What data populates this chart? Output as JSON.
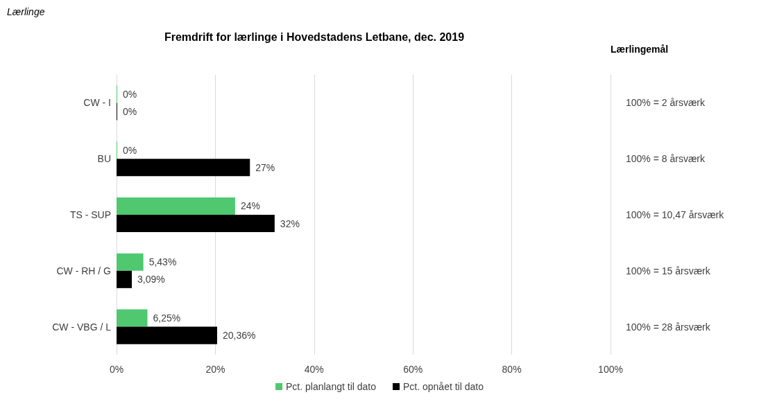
{
  "chart_data": {
    "type": "bar",
    "orientation": "horizontal",
    "title": "Fremdrift for lærlinge i Hovedstadens Letbane, dec. 2019",
    "categories": [
      "CW - I",
      "BU",
      "TS - SUP",
      "CW - RH / G",
      "CW - VBG / L"
    ],
    "y2label": "Lærlingemål",
    "y2_categories": [
      "100% = 2 årsværk",
      "100% = 8 årsværk",
      "100% = 10,47 årsværk",
      "100% = 15 årsværk",
      "100% = 28 årsværk"
    ],
    "series": [
      {
        "name": "Pct. planlangt til dato",
        "color": "#4fc86f",
        "values": [
          0,
          0,
          24,
          5.43,
          6.25
        ],
        "value_labels": [
          "0%",
          "0%",
          "24%",
          "5,43%",
          "6,25%"
        ]
      },
      {
        "name": "Pct. opnået til dato",
        "color": "#000000",
        "values": [
          0,
          27,
          32,
          3.09,
          20.36
        ],
        "value_labels": [
          "0%",
          "27%",
          "32%",
          "3,09%",
          "20,36%"
        ]
      }
    ],
    "xlim": [
      0,
      100
    ],
    "xticks": [
      {
        "value": 0,
        "label": "0%"
      },
      {
        "value": 20,
        "label": "20%"
      },
      {
        "value": 40,
        "label": "40%"
      },
      {
        "value": 60,
        "label": "60%"
      },
      {
        "value": 80,
        "label": "80%"
      },
      {
        "value": 100,
        "label": "100%"
      }
    ],
    "grid": "x",
    "legend": "bottom",
    "annotations": [
      "Lærlinge"
    ]
  }
}
